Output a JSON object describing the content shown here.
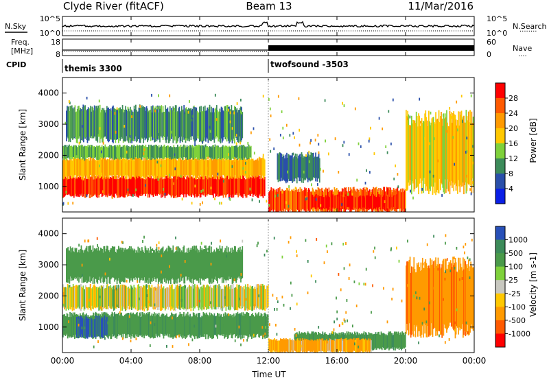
{
  "header": {
    "station": "Clyde River (fitACF)",
    "beam": "Beam 13",
    "date": "11/Mar/2016"
  },
  "panels": {
    "nsky": {
      "left_label": "N.Sky",
      "left_ticks": [
        "10^5",
        "10^0"
      ],
      "right_ticks": [
        "10^5",
        "10^0"
      ],
      "right_label": "N.Search",
      "right_legend": "........"
    },
    "freq": {
      "left_label_1": "Freq.",
      "left_label_2": "[MHz]",
      "left_ticks": [
        "18",
        "8"
      ],
      "right_ticks": [
        "60",
        "0"
      ],
      "right_label": "Nave",
      "right_legend": "...."
    },
    "cpid": {
      "label": "CPID",
      "segments": [
        "themis 3300",
        "twofsound -3503"
      ]
    }
  },
  "axes": {
    "x_ticks": [
      "00:00",
      "04:00",
      "08:00",
      "12:00",
      "16:00",
      "20:00",
      "00:00"
    ],
    "x_label": "Time UT",
    "y_ticks": [
      "4000",
      "3000",
      "2000",
      "1000"
    ],
    "y_label": "Slant Range [km]"
  },
  "colorbars": {
    "power": {
      "label": "Power [dB]",
      "ticks": [
        "28",
        "24",
        "20",
        "16",
        "12",
        "8",
        "4"
      ],
      "colors": [
        "#ff0000",
        "#ff5a00",
        "#ff9a00",
        "#ffc800",
        "#7fd13b",
        "#3c8b5a",
        "#2a4faa",
        "#0a1fe6"
      ]
    },
    "velocity": {
      "label": "Velocity [m s-1]",
      "ticks": [
        "1000",
        "500",
        "100",
        "25",
        "-25",
        "-100",
        "-500",
        "-1000"
      ],
      "colors": [
        "#2850b8",
        "#3c8b5a",
        "#4a9a4a",
        "#7fd13b",
        "#c8c8c0",
        "#ffc800",
        "#ff9a00",
        "#ff5a00",
        "#ff0000"
      ]
    }
  },
  "chart_data": [
    {
      "type": "heatmap",
      "title": "Power",
      "xlabel": "Time UT",
      "ylabel": "Slant Range [km]",
      "xlim": [
        "00:00",
        "24:00"
      ],
      "ylim": [
        180,
        4500
      ],
      "colorbar_label": "Power [dB]",
      "colorbar_range": [
        0,
        32
      ],
      "regions": [
        {
          "t0": 0.0,
          "t1": 11.8,
          "r0": 700,
          "r1": 1300,
          "value": 29
        },
        {
          "t0": 0.0,
          "t1": 11.8,
          "r0": 1300,
          "r1": 1900,
          "value": 20
        },
        {
          "t0": 0.0,
          "t1": 11.0,
          "r0": 1900,
          "r1": 2300,
          "value": 12
        },
        {
          "t0": 0.2,
          "t1": 10.5,
          "r0": 2500,
          "r1": 3500,
          "value": 10
        },
        {
          "t0": 12.0,
          "t1": 20.0,
          "r0": 200,
          "r1": 900,
          "value": 26
        },
        {
          "t0": 14.5,
          "t1": 19.5,
          "r0": 300,
          "r1": 700,
          "value": 30
        },
        {
          "t0": 12.5,
          "t1": 15.0,
          "r0": 1200,
          "r1": 2000,
          "value": 8
        },
        {
          "t0": 20.0,
          "t1": 24.0,
          "r0": 1000,
          "r1": 3200,
          "value": 18
        }
      ]
    },
    {
      "type": "heatmap",
      "title": "Velocity",
      "xlabel": "Time UT",
      "ylabel": "Slant Range [km]",
      "xlim": [
        "00:00",
        "24:00"
      ],
      "ylim": [
        180,
        4500
      ],
      "colorbar_label": "Velocity [m s-1]",
      "colorbar_range": [
        -1000,
        1000
      ],
      "regions": [
        {
          "t0": 0.0,
          "t1": 12.0,
          "r0": 700,
          "r1": 1400,
          "value": 400
        },
        {
          "t0": 0.8,
          "t1": 2.6,
          "r0": 700,
          "r1": 1300,
          "value": 1000
        },
        {
          "t0": 0.0,
          "t1": 12.0,
          "r0": 1600,
          "r1": 2300,
          "value": 0
        },
        {
          "t0": 0.2,
          "t1": 10.5,
          "r0": 2500,
          "r1": 3500,
          "value": 300
        },
        {
          "t0": 13.5,
          "t1": 20.0,
          "r0": 300,
          "r1": 800,
          "value": 400
        },
        {
          "t0": 12.0,
          "t1": 18.0,
          "r0": 200,
          "r1": 600,
          "value": -150
        },
        {
          "t0": 20.0,
          "t1": 24.0,
          "r0": 900,
          "r1": 3000,
          "value": -400
        }
      ]
    }
  ]
}
